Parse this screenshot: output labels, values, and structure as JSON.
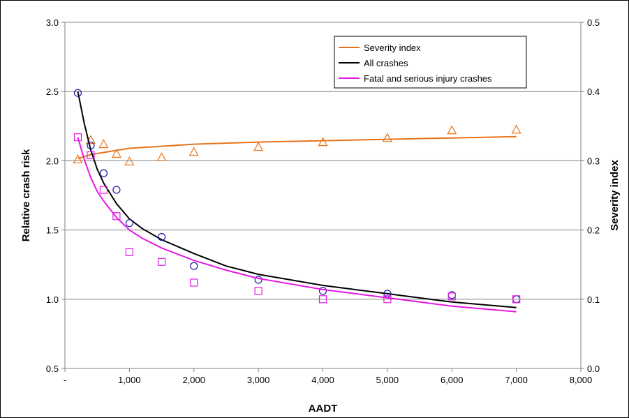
{
  "chart_data": {
    "type": "line",
    "xlabel": "AADT",
    "ylabel": "Relative crash risk",
    "y2label": "Severity index",
    "xlim": [
      0,
      8000
    ],
    "ylim": [
      0.5,
      3.0
    ],
    "y2lim": [
      0.0,
      0.5
    ],
    "x_ticks": [
      0,
      1000,
      2000,
      3000,
      4000,
      5000,
      6000,
      7000,
      8000
    ],
    "x_tick_labels": [
      "-",
      "1,000",
      "2,000",
      "3,000",
      "4,000",
      "5,000",
      "6,000",
      "7,000",
      "8,000"
    ],
    "y_ticks": [
      0.5,
      1.0,
      1.5,
      2.0,
      2.5,
      3.0
    ],
    "y_tick_labels": [
      "0.5",
      "1.0",
      "1.5",
      "2.0",
      "2.5",
      "3.0"
    ],
    "y2_ticks": [
      0.0,
      0.1,
      0.2,
      0.3,
      0.4,
      0.5
    ],
    "y2_tick_labels": [
      "0.0",
      "0.1",
      "0.2",
      "0.3",
      "0.4",
      "0.5"
    ],
    "grid": "horizontal",
    "legend_position": "top-right",
    "colors": {
      "severity": "#e8731a",
      "all": "#000000",
      "all_markers": "#1a1aa0",
      "fatal": "#e619e6"
    },
    "series": [
      {
        "name": "Severity index",
        "axis": "right",
        "marker": "triangle",
        "color": "#e8731a",
        "points": [
          {
            "x": 200,
            "y": 0.302
          },
          {
            "x": 400,
            "y": 0.33
          },
          {
            "x": 600,
            "y": 0.324
          },
          {
            "x": 800,
            "y": 0.31
          },
          {
            "x": 1000,
            "y": 0.299
          },
          {
            "x": 1500,
            "y": 0.305
          },
          {
            "x": 2000,
            "y": 0.313
          },
          {
            "x": 3000,
            "y": 0.32
          },
          {
            "x": 4000,
            "y": 0.327
          },
          {
            "x": 5000,
            "y": 0.333
          },
          {
            "x": 6000,
            "y": 0.344
          },
          {
            "x": 7000,
            "y": 0.345
          }
        ],
        "trend": {
          "x": [
            200,
            400,
            600,
            800,
            1000,
            1500,
            2000,
            3000,
            4000,
            5000,
            6000,
            7000
          ],
          "y": [
            0.303,
            0.309,
            0.312,
            0.315,
            0.318,
            0.321,
            0.324,
            0.327,
            0.329,
            0.331,
            0.333,
            0.335
          ]
        }
      },
      {
        "name": "All crashes",
        "axis": "left",
        "marker": "circle",
        "color": "#000000",
        "points": [
          {
            "x": 200,
            "y": 2.49
          },
          {
            "x": 400,
            "y": 2.11
          },
          {
            "x": 600,
            "y": 1.91
          },
          {
            "x": 800,
            "y": 1.79
          },
          {
            "x": 1000,
            "y": 1.55
          },
          {
            "x": 1500,
            "y": 1.45
          },
          {
            "x": 2000,
            "y": 1.24
          },
          {
            "x": 3000,
            "y": 1.14
          },
          {
            "x": 4000,
            "y": 1.06
          },
          {
            "x": 5000,
            "y": 1.04
          },
          {
            "x": 6000,
            "y": 1.03
          },
          {
            "x": 7000,
            "y": 1.0
          }
        ],
        "trend": {
          "x": [
            200,
            300,
            400,
            500,
            600,
            800,
            1000,
            1200,
            1500,
            2000,
            2500,
            3000,
            4000,
            5000,
            6000,
            7000
          ],
          "y": [
            2.5,
            2.27,
            2.08,
            1.94,
            1.84,
            1.69,
            1.58,
            1.51,
            1.43,
            1.33,
            1.24,
            1.18,
            1.1,
            1.04,
            0.98,
            0.94
          ]
        }
      },
      {
        "name": "Fatal and serious injury crashes",
        "axis": "left",
        "marker": "square",
        "color": "#e619e6",
        "points": [
          {
            "x": 200,
            "y": 2.17
          },
          {
            "x": 400,
            "y": 2.04
          },
          {
            "x": 600,
            "y": 1.79
          },
          {
            "x": 800,
            "y": 1.6
          },
          {
            "x": 1000,
            "y": 1.34
          },
          {
            "x": 1500,
            "y": 1.27
          },
          {
            "x": 2000,
            "y": 1.12
          },
          {
            "x": 3000,
            "y": 1.06
          },
          {
            "x": 4000,
            "y": 1.0
          },
          {
            "x": 5000,
            "y": 1.0
          },
          {
            "x": 6000,
            "y": 1.02
          },
          {
            "x": 7000,
            "y": 1.0
          }
        ],
        "trend": {
          "x": [
            200,
            300,
            400,
            500,
            600,
            800,
            1000,
            1200,
            1500,
            2000,
            2500,
            3000,
            4000,
            5000,
            6000,
            7000
          ],
          "y": [
            2.17,
            2.01,
            1.88,
            1.78,
            1.71,
            1.59,
            1.5,
            1.44,
            1.37,
            1.28,
            1.21,
            1.15,
            1.07,
            1.01,
            0.95,
            0.91
          ]
        }
      }
    ]
  }
}
